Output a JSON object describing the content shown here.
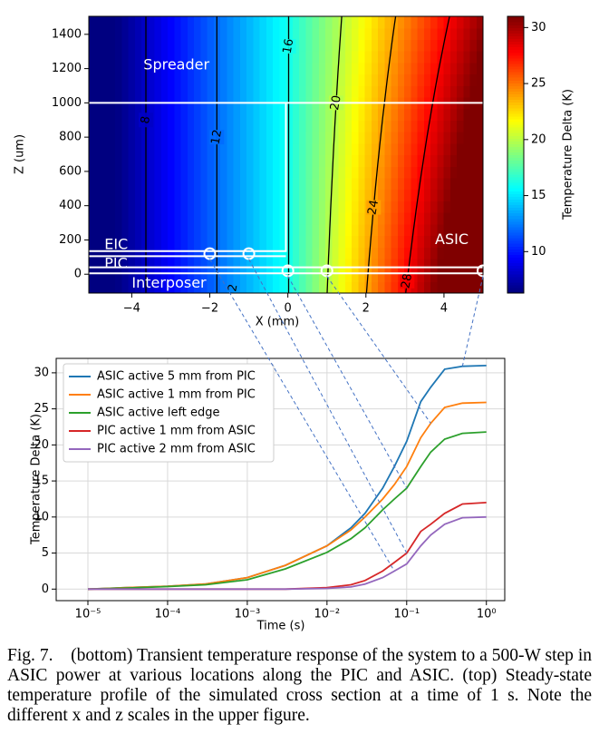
{
  "chart_data": [
    {
      "type": "heatmap",
      "xlabel": "X (mm)",
      "ylabel": "Z (um)",
      "colorbar_label": "Temperature Delta (K)",
      "xlim": [
        -5.1,
        5.0
      ],
      "xticks": [
        {
          "value": -4,
          "label": "−4"
        },
        {
          "value": -2,
          "label": "−2"
        },
        0,
        2,
        4
      ],
      "ylim": [
        -110,
        1505
      ],
      "yticks": [
        0,
        200,
        400,
        600,
        800,
        1000,
        1200,
        1400
      ],
      "clim": [
        6.3,
        31
      ],
      "cticks": [
        10,
        15,
        20,
        25,
        30
      ],
      "colormap": "jet",
      "contours": [
        8,
        12,
        16,
        20,
        24,
        28
      ],
      "regions": [
        "Spreader",
        "EIC",
        "PIC",
        "Interposer",
        "ASIC"
      ],
      "annotations": [
        "2"
      ],
      "probes": {
        "x": [
          -2,
          -1,
          0,
          1,
          5
        ],
        "z": [
          120,
          120,
          20,
          20,
          20
        ]
      }
    },
    {
      "type": "line",
      "xscale": "log",
      "grid": true,
      "legend": "upper left",
      "xlabel": "Time (s)",
      "ylabel": "Temperature Delta (K)",
      "xlim": [
        4e-06,
        1.7
      ],
      "xticks": [
        {
          "value": 1e-05,
          "label": "10⁻⁵"
        },
        {
          "value": 0.0001,
          "label": "10⁻⁴"
        },
        {
          "value": 0.001,
          "label": "10⁻³"
        },
        {
          "value": 0.01,
          "label": "10⁻²"
        },
        {
          "value": 0.1,
          "label": "10⁻¹"
        },
        {
          "value": 1,
          "label": "10⁰"
        }
      ],
      "ylim": [
        -1.6,
        32
      ],
      "yticks": [
        0,
        5,
        10,
        15,
        20,
        25,
        30
      ],
      "x": [
        1e-05,
        3e-05,
        0.0001,
        0.0003,
        0.001,
        0.003,
        0.01,
        0.02,
        0.03,
        0.05,
        0.07,
        0.1,
        0.15,
        0.2,
        0.3,
        0.5,
        1
      ],
      "series": [
        {
          "name": "ASIC active 5 mm from PIC",
          "color": "#1f77b4",
          "values": [
            0,
            0.2,
            0.4,
            0.7,
            1.6,
            3.3,
            6.0,
            8.5,
            10.5,
            14,
            17,
            20.5,
            26,
            28,
            30.5,
            30.9,
            31
          ]
        },
        {
          "name": "ASIC active 1 mm from PIC",
          "color": "#ff7f0e",
          "values": [
            0,
            0.2,
            0.4,
            0.7,
            1.6,
            3.3,
            6.0,
            8.2,
            10,
            12.5,
            14.5,
            17,
            21,
            23,
            25.2,
            25.8,
            25.9
          ]
        },
        {
          "name": "ASIC active left edge",
          "color": "#2ca02c",
          "values": [
            0,
            0.15,
            0.35,
            0.6,
            1.3,
            2.8,
            5.1,
            7,
            8.5,
            11,
            12.5,
            14,
            17,
            19,
            20.8,
            21.6,
            21.8
          ]
        },
        {
          "name": "PIC active 1 mm from ASIC",
          "color": "#d62728",
          "values": [
            0,
            0,
            0,
            0,
            0,
            0,
            0.2,
            0.6,
            1.2,
            2.5,
            3.7,
            5,
            8,
            9,
            10.5,
            11.8,
            12
          ]
        },
        {
          "name": "PIC active 2 mm from ASIC",
          "color": "#9467bd",
          "values": [
            0,
            0,
            0,
            0,
            0,
            0,
            0.1,
            0.3,
            0.7,
            1.6,
            2.5,
            3.5,
            6,
            7.5,
            9,
            9.9,
            10
          ]
        }
      ]
    }
  ],
  "caption": {
    "label": "Fig. 7.",
    "text": "(bottom) Transient temperature response of the system to a 500-W step in ASIC power at various locations along the PIC and ASIC. (top) Steady-state temperature profile of the simulated cross section at a time of 1 s. Note the different x and z scales in the upper figure."
  }
}
